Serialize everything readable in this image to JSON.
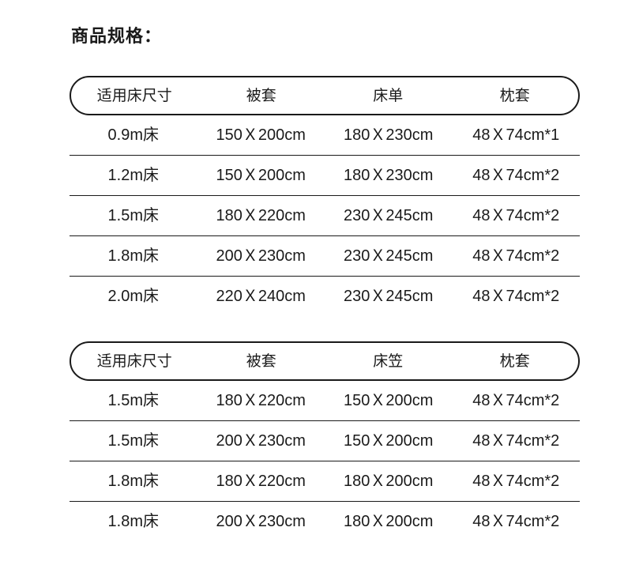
{
  "page": {
    "title": "商品规格：",
    "background_color": "#ffffff",
    "text_color": "#1a1a1a",
    "line_color": "#1a1a1a"
  },
  "tables": [
    {
      "headers": [
        "适用床尺寸",
        "被套",
        "床单",
        "枕套"
      ],
      "rows": [
        [
          "0.9m床",
          "150Ｘ200cm",
          "180Ｘ230cm",
          "48Ｘ74cm*1"
        ],
        [
          "1.2m床",
          "150Ｘ200cm",
          "180Ｘ230cm",
          "48Ｘ74cm*2"
        ],
        [
          "1.5m床",
          "180Ｘ220cm",
          "230Ｘ245cm",
          "48Ｘ74cm*2"
        ],
        [
          "1.8m床",
          "200Ｘ230cm",
          "230Ｘ245cm",
          "48Ｘ74cm*2"
        ],
        [
          "2.0m床",
          "220Ｘ240cm",
          "230Ｘ245cm",
          "48Ｘ74cm*2"
        ]
      ]
    },
    {
      "headers": [
        "适用床尺寸",
        "被套",
        "床笠",
        "枕套"
      ],
      "rows": [
        [
          "1.5m床",
          "180Ｘ220cm",
          "150Ｘ200cm",
          "48Ｘ74cm*2"
        ],
        [
          "1.5m床",
          "200Ｘ230cm",
          "150Ｘ200cm",
          "48Ｘ74cm*2"
        ],
        [
          "1.8m床",
          "180Ｘ220cm",
          "180Ｘ200cm",
          "48Ｘ74cm*2"
        ],
        [
          "1.8m床",
          "200Ｘ230cm",
          "180Ｘ200cm",
          "48Ｘ74cm*2"
        ]
      ]
    }
  ]
}
